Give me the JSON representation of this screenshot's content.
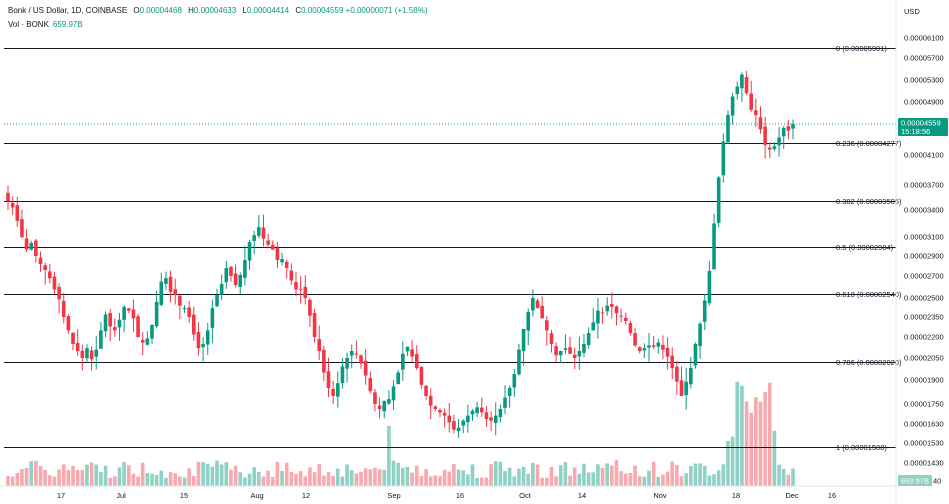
{
  "header": {
    "title": "Bonk / US Dollar, 1D, COINBASE",
    "o_label": "O",
    "o": "0.00004468",
    "h_label": "H",
    "h": "0.00004633",
    "l_label": "L",
    "l": "0.00004414",
    "c_label": "C",
    "c": "0.00004559",
    "chg": "+0.00000071 (+1.58%)",
    "vol_label": "Vol · BONK",
    "vol": "659.97B"
  },
  "axis": {
    "currency": "USD",
    "last_price": "0.00004559",
    "countdown": "15:18:56",
    "vol_badge": "659.97B",
    "bottom_stub": "40"
  },
  "colors": {
    "up": "#089981",
    "down": "#F23645",
    "vol_up": "#8FD1C4",
    "vol_down": "#F7A9AE",
    "fib": "#131722"
  },
  "chart_data": {
    "type": "candlestick",
    "title": "Bonk / US Dollar, 1D, COINBASE",
    "ylim": [
      1.25e-05,
      6.5e-05
    ],
    "y_ticks": [
      "0.00006100",
      "0.00005700",
      "0.00005300",
      "0.00004900",
      "0.00004100",
      "0.00003700",
      "0.00003400",
      "0.00003100",
      "0.00002900",
      "0.00002700",
      "0.00002500",
      "0.00002350",
      "0.00002200",
      "0.00002050",
      "0.00001900",
      "0.00001750",
      "0.00001630",
      "0.00001530",
      "0.00001430"
    ],
    "x_ticks": [
      "17",
      "Jul",
      "15",
      "Aug",
      "12",
      "Sep",
      "16",
      "Oct",
      "14",
      "Nov",
      "18",
      "Dec",
      "16"
    ],
    "fib_levels": [
      {
        "label": "0 (0.00005901)",
        "value": 5.901e-05
      },
      {
        "label": "0.236 (0.00004277)",
        "value": 4.277e-05
      },
      {
        "label": "0.382 (0.00003505)",
        "value": 3.505e-05
      },
      {
        "label": "0.5 (0.00002984)",
        "value": 2.984e-05
      },
      {
        "label": "0.618 (0.00002540)",
        "value": 2.54e-05
      },
      {
        "label": "0.786 (0.00002020)",
        "value": 2.02e-05
      },
      {
        "label": "1 (0.00001508)",
        "value": 1.508e-05
      }
    ],
    "close_path": [
      3.5e-05,
      3.43e-05,
      3.28e-05,
      3.1e-05,
      2.96e-05,
      3.03e-05,
      2.9e-05,
      2.82e-05,
      2.76e-05,
      2.68e-05,
      2.58e-05,
      2.49e-05,
      2.35e-05,
      2.25e-05,
      2.15e-05,
      2.1e-05,
      2.05e-05,
      2.12e-05,
      2.04e-05,
      2.11e-05,
      2.25e-05,
      2.37e-05,
      2.28e-05,
      2.25e-05,
      2.33e-05,
      2.43e-05,
      2.4e-05,
      2.34e-05,
      2.2e-05,
      2.16e-05,
      2.19e-05,
      2.29e-05,
      2.47e-05,
      2.65e-05,
      2.68e-05,
      2.56e-05,
      2.53e-05,
      2.44e-05,
      2.42e-05,
      2.35e-05,
      2.22e-05,
      2.12e-05,
      2.15e-05,
      2.25e-05,
      2.42e-05,
      2.53e-05,
      2.63e-05,
      2.78e-05,
      2.7e-05,
      2.62e-05,
      2.71e-05,
      2.86e-05,
      3.04e-05,
      3.12e-05,
      3.21e-05,
      3.08e-05,
      3.01e-05,
      2.96e-05,
      2.86e-05,
      2.87e-05,
      2.78e-05,
      2.66e-05,
      2.58e-05,
      2.58e-05,
      2.5e-05,
      2.36e-05,
      2.2e-05,
      2.1e-05,
      1.95e-05,
      1.85e-05,
      1.8e-05,
      1.88e-05,
      1.99e-05,
      2.05e-05,
      2.1e-05,
      2.08e-05,
      2.01e-05,
      1.93e-05,
      1.83e-05,
      1.75e-05,
      1.72e-05,
      1.77e-05,
      1.78e-05,
      1.86e-05,
      1.95e-05,
      2.08e-05,
      2.13e-05,
      2.06e-05,
      1.98e-05,
      1.87e-05,
      1.8e-05,
      1.74e-05,
      1.72e-05,
      1.7e-05,
      1.68e-05,
      1.64e-05,
      1.6e-05,
      1.61e-05,
      1.65e-05,
      1.68e-05,
      1.71e-05,
      1.73e-05,
      1.7e-05,
      1.66e-05,
      1.65e-05,
      1.68e-05,
      1.72e-05,
      1.79e-05,
      1.85e-05,
      1.94e-05,
      2.11e-05,
      2.26e-05,
      2.39e-05,
      2.5e-05,
      2.42e-05,
      2.34e-05,
      2.25e-05,
      2.15e-05,
      2.07e-05,
      2.1e-05,
      2.12e-05,
      2.08e-05,
      2.05e-05,
      2.1e-05,
      2.15e-05,
      2.23e-05,
      2.31e-05,
      2.4e-05,
      2.38e-05,
      2.44e-05,
      2.43e-05,
      2.38e-05,
      2.36e-05,
      2.32e-05,
      2.23e-05,
      2.14e-05,
      2.1e-05,
      2.12e-05,
      2.14e-05,
      2.13e-05,
      2.16e-05,
      2.11e-05,
      2.06e-05,
      1.98e-05,
      1.89e-05,
      1.8e-05,
      1.89e-05,
      1.98e-05,
      2.15e-05,
      2.3e-05,
      2.48e-05,
      2.75e-05,
      3.25e-05,
      3.8e-05,
      4.3e-05,
      4.7e-05,
      5e-05,
      5.18e-05,
      5.4e-05,
      5.06e-05,
      4.78e-05,
      4.7e-05,
      4.48e-05,
      4.25e-05,
      4.18e-05,
      4.23e-05,
      4.36e-05,
      4.5e-05,
      4.46e-05,
      4.56e-05
    ],
    "last_price": 4.559e-05
  }
}
